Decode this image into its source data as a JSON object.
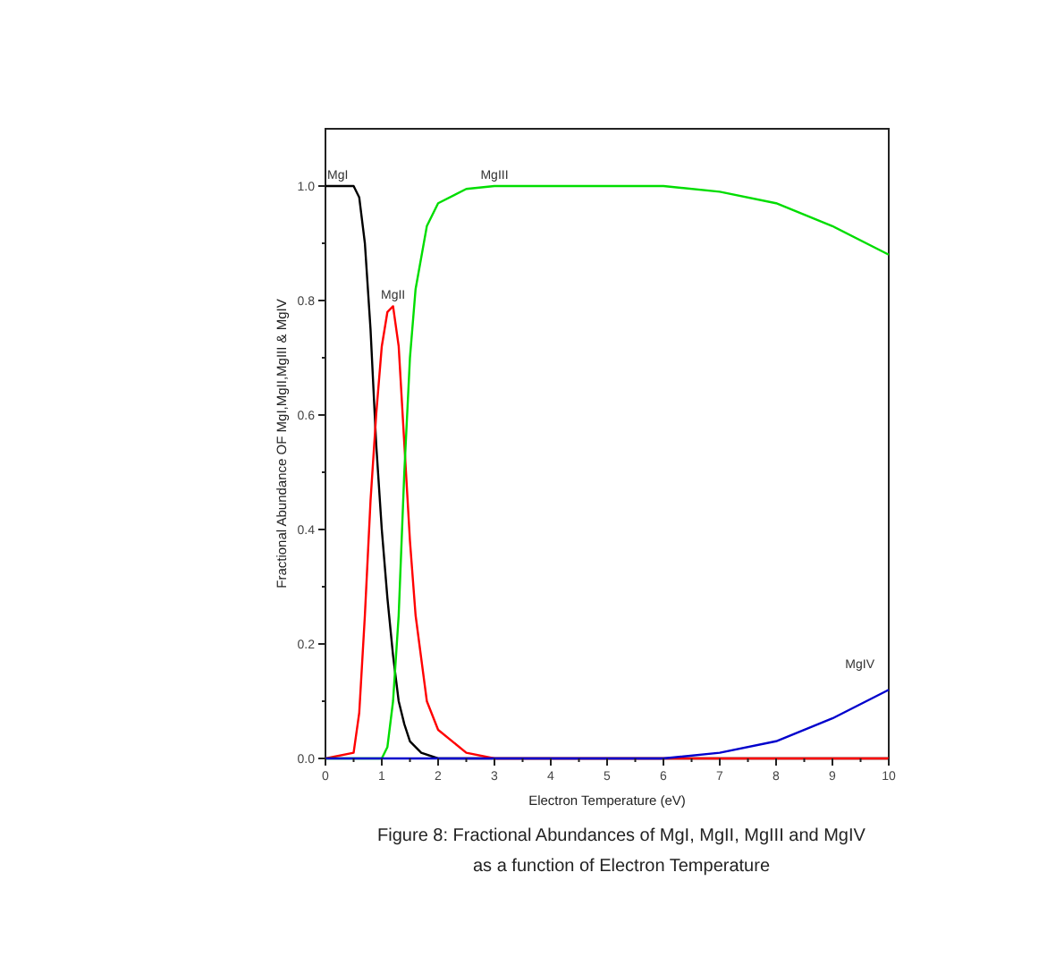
{
  "chart_data": {
    "type": "line",
    "title": "Figure 8: Fractional Abundances of MgI, MgII, MgIII and MgIV as a function of Electron Temperature",
    "xlabel": "Electron Temperature (eV)",
    "ylabel": "Fractional Abundance OF MgI,MgII,MgIII & MgIV",
    "xlim": [
      0,
      10
    ],
    "ylim": [
      0,
      1.1
    ],
    "xticks": [
      0,
      {
        "value": 0.5,
        "label": null
      },
      1,
      {
        "value": 1.5,
        "label": null
      },
      2,
      {
        "value": 2.5,
        "label": null
      },
      3,
      {
        "value": 3.5,
        "label": null
      },
      4,
      {
        "value": 4.5,
        "label": null
      },
      5,
      {
        "value": 5.5,
        "label": null
      },
      6,
      {
        "value": 6.5,
        "label": null
      },
      7,
      {
        "value": 7.5,
        "label": null
      },
      8,
      {
        "value": 8.5,
        "label": null
      },
      9,
      {
        "value": 9.5,
        "label": null
      },
      10
    ],
    "yticks": [
      {
        "value": 0,
        "label": "0.0"
      },
      {
        "value": 0.1,
        "label": null
      },
      0.2,
      {
        "value": 0.3,
        "label": null
      },
      0.4,
      {
        "value": 0.5,
        "label": null
      },
      0.6,
      {
        "value": 0.7,
        "label": null
      },
      0.8,
      {
        "value": 0.9,
        "label": null
      },
      {
        "value": 1,
        "label": "1.0"
      }
    ],
    "grid": false,
    "marker": "none",
    "line_style": "solid",
    "series": [
      {
        "name": "MgI",
        "color": "#000000",
        "x": [
          0,
          0.5,
          0.6,
          0.7,
          0.8,
          0.9,
          1.0,
          1.1,
          1.2,
          1.3,
          1.4,
          1.5,
          1.7,
          2,
          10
        ],
        "values": [
          1,
          1,
          0.98,
          0.9,
          0.75,
          0.55,
          0.4,
          0.28,
          0.18,
          0.1,
          0.06,
          0.03,
          0.01,
          0,
          0
        ]
      },
      {
        "name": "MgII",
        "color": "#ff0000",
        "x": [
          0,
          0.5,
          0.6,
          0.7,
          0.8,
          0.9,
          1.0,
          1.1,
          1.2,
          1.3,
          1.4,
          1.5,
          1.6,
          1.8,
          2.0,
          2.5,
          3,
          10
        ],
        "values": [
          0,
          0.01,
          0.08,
          0.25,
          0.45,
          0.6,
          0.72,
          0.78,
          0.79,
          0.72,
          0.55,
          0.38,
          0.25,
          0.1,
          0.05,
          0.01,
          0,
          0
        ]
      },
      {
        "name": "MgIII",
        "color": "#00dd00",
        "x": [
          0,
          1.0,
          1.1,
          1.2,
          1.3,
          1.4,
          1.5,
          1.6,
          1.8,
          2.0,
          2.5,
          3,
          5,
          6,
          7,
          8,
          9,
          10
        ],
        "values": [
          0,
          0,
          0.02,
          0.1,
          0.25,
          0.5,
          0.7,
          0.82,
          0.93,
          0.97,
          0.995,
          1,
          1,
          1,
          0.99,
          0.97,
          0.93,
          0.88
        ]
      },
      {
        "name": "MgIV",
        "color": "#0000cc",
        "x": [
          0,
          6,
          7,
          8,
          9,
          10
        ],
        "values": [
          0,
          0,
          0.01,
          0.03,
          0.07,
          0.12
        ]
      }
    ]
  }
}
